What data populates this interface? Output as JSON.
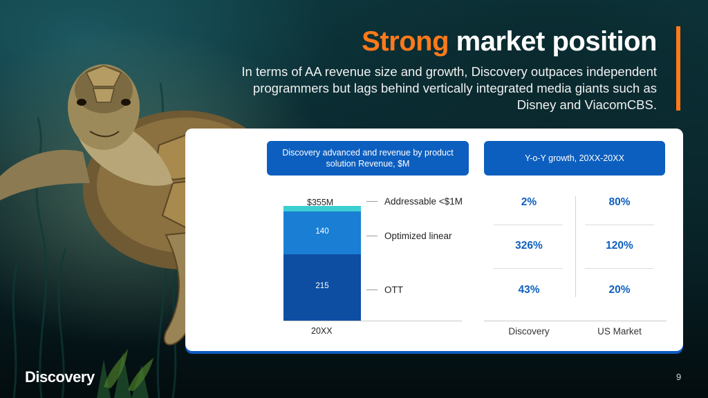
{
  "slide": {
    "title_accent": "Strong",
    "title_rest": "market position",
    "subtitle": "In terms of AA revenue size and growth, Discovery outpaces independent programmers but lags behind vertically integrated media giants such as Disney and ViacomCBS.",
    "page_number": "9",
    "logo_text": "Discovery"
  },
  "colors": {
    "accent_orange": "#ff7a1a",
    "header_blue": "#0d5fbf",
    "segment_teal": "#3ccfd1",
    "segment_mid_blue": "#1a7fd4",
    "segment_dark_blue": "#0d4ea3",
    "stat_blue": "#0d5fbf"
  },
  "left_panel": {
    "header": "Discovery advanced and revenue by product solution Revenue, $M",
    "total_label": "$355M",
    "x_label": "20XX",
    "legend": [
      {
        "label": "Addressable <$1M"
      },
      {
        "label": "Optimized linear"
      },
      {
        "label": "OTT"
      }
    ]
  },
  "chart_data": {
    "type": "bar",
    "stacked": true,
    "categories": [
      "20XX"
    ],
    "series": [
      {
        "name": "OTT",
        "values": [
          215
        ],
        "label": "215"
      },
      {
        "name": "Optimized linear",
        "values": [
          140
        ],
        "label": "140"
      },
      {
        "name": "Addressable <$1M",
        "values": [
          0.9
        ]
      }
    ],
    "total": 355,
    "total_label": "$355M"
  },
  "right_panel": {
    "header": "Y-o-Y growth, 20XX-20XX",
    "columns": [
      "Discovery",
      "US Market"
    ],
    "rows": [
      [
        "2%",
        "80%"
      ],
      [
        "326%",
        "120%"
      ],
      [
        "43%",
        "20%"
      ]
    ]
  },
  "icons": {
    "logo": "discovery-globe-logo",
    "background": "sea-turtle-underwater"
  }
}
